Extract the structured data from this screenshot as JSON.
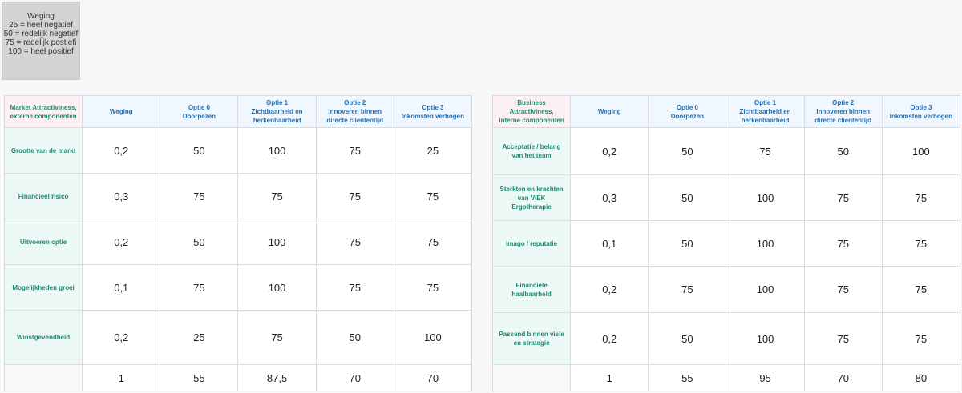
{
  "legend": {
    "title": "Weging",
    "lines": [
      "25 = heel negatief",
      "50 = redelijk negatief",
      "75 = redelijk postiefi",
      "100 = heel positief"
    ]
  },
  "market": {
    "corner": [
      "Market Attractiviness,",
      "externe componenten"
    ],
    "headers": [
      [
        "Weging"
      ],
      [
        "Optie 0",
        "Doorpezen"
      ],
      [
        "Optie 1",
        "Zichtbaarheid en",
        "herkenbaarheid"
      ],
      [
        "Optie 2",
        "Innoveren binnen",
        "directe clienten­tijd"
      ],
      [
        "Optie 3",
        "Inkomsten verhogen"
      ]
    ],
    "rows": [
      {
        "label": [
          "Grootte van de markt"
        ],
        "values": [
          "0,2",
          "50",
          "100",
          "75",
          "25"
        ]
      },
      {
        "label": [
          "Financieel risico"
        ],
        "values": [
          "0,3",
          "75",
          "75",
          "75",
          "75"
        ]
      },
      {
        "label": [
          "Uitvoeren optie"
        ],
        "values": [
          "0,2",
          "50",
          "100",
          "75",
          "75"
        ]
      },
      {
        "label": [
          "Mogelijkheden groei"
        ],
        "values": [
          "0,1",
          "75",
          "100",
          "75",
          "75"
        ]
      },
      {
        "label": [
          "Winstgevendheid"
        ],
        "values": [
          "0,2",
          "25",
          "75",
          "50",
          "100"
        ]
      }
    ],
    "totals": [
      "1",
      "55",
      "87,5",
      "70",
      "70"
    ]
  },
  "business": {
    "corner": [
      "Business Attractiviness,",
      "interne componenten"
    ],
    "headers": [
      [
        "Weging"
      ],
      [
        "Optie 0",
        "Doorpezen"
      ],
      [
        "Optie 1",
        "Zichtbaarheid en",
        "herkenbaarheid"
      ],
      [
        "Optie 2",
        "Innoveren binnen",
        "directe clienten­tijd"
      ],
      [
        "Optie 3",
        "Inkomsten verhogen"
      ]
    ],
    "rows": [
      {
        "label": [
          "Acceptatie / belang",
          "van het team"
        ],
        "values": [
          "0,2",
          "50",
          "75",
          "50",
          "100"
        ]
      },
      {
        "label": [
          "Sterkten en krachten",
          "van VIEK Ergotherapie"
        ],
        "values": [
          "0,3",
          "50",
          "100",
          "75",
          "75"
        ]
      },
      {
        "label": [
          "Imago / reputatie"
        ],
        "values": [
          "0,1",
          "50",
          "100",
          "75",
          "75"
        ]
      },
      {
        "label": [
          "Financiële",
          "haalbaarheid"
        ],
        "values": [
          "0,2",
          "75",
          "100",
          "75",
          "75"
        ]
      },
      {
        "label": [
          "Passend binnen visie",
          "en strategie"
        ],
        "values": [
          "0,2",
          "50",
          "100",
          "75",
          "75"
        ]
      }
    ],
    "totals": [
      "1",
      "55",
      "95",
      "70",
      "80"
    ]
  }
}
